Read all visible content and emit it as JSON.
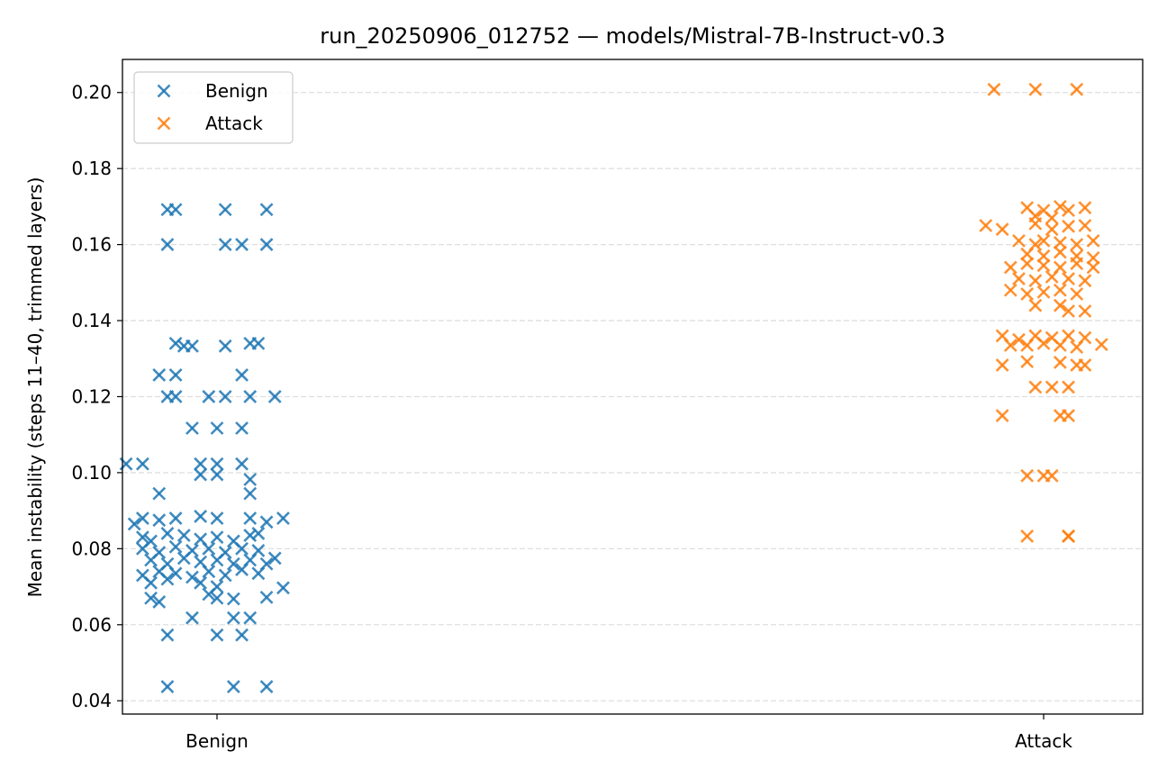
{
  "chart_data": {
    "type": "scatter",
    "title": "run_20250906_012752 — models/Mistral-7B-Instruct-v0.3",
    "xlabel": "",
    "ylabel": "Mean instability (steps 11–40, trimmed layers)",
    "categories": [
      "Benign",
      "Attack"
    ],
    "ylim": [
      0.0365,
      0.2087
    ],
    "yticks": [
      0.04,
      0.06,
      0.08,
      0.1,
      0.12,
      0.14,
      0.16,
      0.18,
      0.2
    ],
    "ytick_labels": [
      "0.04",
      "0.06",
      "0.08",
      "0.10",
      "0.12",
      "0.14",
      "0.16",
      "0.18",
      "0.20"
    ],
    "grid": "y-dashed",
    "legend_position": "top-left",
    "marker": "x",
    "series": [
      {
        "name": "Benign",
        "color": "#1f77b4",
        "category": "Benign",
        "points": [
          [
            -0.06,
            0.1692
          ],
          [
            -0.05,
            0.1692
          ],
          [
            0.01,
            0.1692
          ],
          [
            0.06,
            0.1692
          ],
          [
            -0.06,
            0.16
          ],
          [
            0.01,
            0.16
          ],
          [
            0.03,
            0.16
          ],
          [
            0.06,
            0.16
          ],
          [
            -0.05,
            0.134
          ],
          [
            -0.04,
            0.1333
          ],
          [
            -0.03,
            0.1333
          ],
          [
            0.01,
            0.1333
          ],
          [
            0.04,
            0.134
          ],
          [
            0.05,
            0.134
          ],
          [
            -0.07,
            0.1257
          ],
          [
            -0.05,
            0.1257
          ],
          [
            0.03,
            0.1257
          ],
          [
            -0.06,
            0.12
          ],
          [
            -0.05,
            0.12
          ],
          [
            -0.01,
            0.12
          ],
          [
            0.01,
            0.12
          ],
          [
            0.04,
            0.12
          ],
          [
            0.07,
            0.12
          ],
          [
            -0.03,
            0.1117
          ],
          [
            0.0,
            0.1117
          ],
          [
            0.03,
            0.1117
          ],
          [
            -0.11,
            0.1023
          ],
          [
            -0.09,
            0.1023
          ],
          [
            -0.02,
            0.1023
          ],
          [
            0.0,
            0.1023
          ],
          [
            0.03,
            0.1023
          ],
          [
            -0.02,
            0.0995
          ],
          [
            0.0,
            0.0995
          ],
          [
            0.04,
            0.0982
          ],
          [
            0.04,
            0.0945
          ],
          [
            -0.07,
            0.0945
          ],
          [
            -0.1,
            0.0865
          ],
          [
            -0.09,
            0.088
          ],
          [
            -0.07,
            0.0875
          ],
          [
            -0.05,
            0.088
          ],
          [
            -0.02,
            0.0885
          ],
          [
            0.0,
            0.088
          ],
          [
            0.04,
            0.088
          ],
          [
            0.06,
            0.087
          ],
          [
            0.08,
            0.088
          ],
          [
            -0.09,
            0.083
          ],
          [
            -0.08,
            0.082
          ],
          [
            -0.06,
            0.084
          ],
          [
            -0.04,
            0.0835
          ],
          [
            -0.02,
            0.0825
          ],
          [
            0.0,
            0.083
          ],
          [
            0.02,
            0.082
          ],
          [
            0.04,
            0.0835
          ],
          [
            0.05,
            0.084
          ],
          [
            -0.09,
            0.08
          ],
          [
            -0.07,
            0.079
          ],
          [
            -0.05,
            0.0805
          ],
          [
            -0.03,
            0.0795
          ],
          [
            -0.01,
            0.08
          ],
          [
            0.01,
            0.079
          ],
          [
            0.03,
            0.08
          ],
          [
            0.05,
            0.0795
          ],
          [
            0.07,
            0.0775
          ],
          [
            -0.08,
            0.077
          ],
          [
            -0.06,
            0.076
          ],
          [
            -0.04,
            0.0775
          ],
          [
            -0.02,
            0.0765
          ],
          [
            0.0,
            0.077
          ],
          [
            0.02,
            0.076
          ],
          [
            0.04,
            0.077
          ],
          [
            0.06,
            0.076
          ],
          [
            -0.09,
            0.073
          ],
          [
            -0.07,
            0.074
          ],
          [
            -0.05,
            0.0735
          ],
          [
            -0.03,
            0.0725
          ],
          [
            -0.01,
            0.074
          ],
          [
            0.01,
            0.073
          ],
          [
            0.03,
            0.0745
          ],
          [
            0.05,
            0.0735
          ],
          [
            -0.08,
            0.071
          ],
          [
            -0.06,
            0.072
          ],
          [
            -0.02,
            0.071
          ],
          [
            0.0,
            0.07
          ],
          [
            0.08,
            0.0697
          ],
          [
            -0.08,
            0.067
          ],
          [
            -0.07,
            0.066
          ],
          [
            -0.01,
            0.068
          ],
          [
            0.0,
            0.067
          ],
          [
            0.02,
            0.0668
          ],
          [
            0.06,
            0.0672
          ],
          [
            -0.03,
            0.0618
          ],
          [
            0.02,
            0.0618
          ],
          [
            0.04,
            0.0618
          ],
          [
            -0.06,
            0.0573
          ],
          [
            0.0,
            0.0573
          ],
          [
            0.03,
            0.0573
          ],
          [
            -0.06,
            0.0437
          ],
          [
            0.02,
            0.0437
          ],
          [
            0.06,
            0.0437
          ]
        ]
      },
      {
        "name": "Attack",
        "color": "#ff7f0e",
        "category": "Attack",
        "points": [
          [
            -0.06,
            0.2008
          ],
          [
            -0.01,
            0.2008
          ],
          [
            0.04,
            0.2008
          ],
          [
            -0.02,
            0.1697
          ],
          [
            0.0,
            0.169
          ],
          [
            0.02,
            0.17
          ],
          [
            -0.01,
            0.1675
          ],
          [
            0.01,
            0.167
          ],
          [
            0.03,
            0.169
          ],
          [
            0.05,
            0.1697
          ],
          [
            -0.07,
            0.165
          ],
          [
            -0.05,
            0.164
          ],
          [
            -0.01,
            0.1655
          ],
          [
            0.01,
            0.164
          ],
          [
            0.03,
            0.1648
          ],
          [
            0.05,
            0.165
          ],
          [
            -0.03,
            0.161
          ],
          [
            -0.01,
            0.16
          ],
          [
            0.0,
            0.161
          ],
          [
            0.02,
            0.1605
          ],
          [
            0.04,
            0.16
          ],
          [
            0.06,
            0.161
          ],
          [
            -0.02,
            0.1575
          ],
          [
            0.0,
            0.157
          ],
          [
            0.02,
            0.158
          ],
          [
            0.04,
            0.157
          ],
          [
            0.06,
            0.1565
          ],
          [
            -0.04,
            0.154
          ],
          [
            -0.02,
            0.155
          ],
          [
            0.0,
            0.1545
          ],
          [
            0.02,
            0.154
          ],
          [
            0.04,
            0.155
          ],
          [
            0.06,
            0.154
          ],
          [
            -0.03,
            0.151
          ],
          [
            -0.01,
            0.1505
          ],
          [
            0.01,
            0.1515
          ],
          [
            0.03,
            0.151
          ],
          [
            0.05,
            0.1505
          ],
          [
            -0.04,
            0.148
          ],
          [
            -0.02,
            0.147
          ],
          [
            0.0,
            0.1475
          ],
          [
            0.02,
            0.148
          ],
          [
            0.04,
            0.147
          ],
          [
            -0.01,
            0.144
          ],
          [
            0.02,
            0.144
          ],
          [
            0.03,
            0.1425
          ],
          [
            0.05,
            0.1425
          ],
          [
            -0.05,
            0.136
          ],
          [
            -0.03,
            0.135
          ],
          [
            -0.01,
            0.136
          ],
          [
            0.01,
            0.1355
          ],
          [
            0.03,
            0.136
          ],
          [
            0.05,
            0.1355
          ],
          [
            -0.04,
            0.1335
          ],
          [
            -0.02,
            0.1335
          ],
          [
            0.0,
            0.134
          ],
          [
            0.02,
            0.1335
          ],
          [
            0.04,
            0.133
          ],
          [
            0.07,
            0.1337
          ],
          [
            -0.02,
            0.1292
          ],
          [
            0.02,
            0.129
          ],
          [
            0.04,
            0.1283
          ],
          [
            0.05,
            0.1283
          ],
          [
            -0.05,
            0.1283
          ],
          [
            -0.01,
            0.1225
          ],
          [
            0.01,
            0.1225
          ],
          [
            0.03,
            0.1225
          ],
          [
            -0.05,
            0.115
          ],
          [
            0.02,
            0.115
          ],
          [
            0.03,
            0.115
          ],
          [
            -0.02,
            0.0992
          ],
          [
            0.0,
            0.0992
          ],
          [
            0.01,
            0.0992
          ],
          [
            -0.02,
            0.0833
          ],
          [
            0.03,
            0.0833
          ],
          [
            0.03,
            0.0833
          ]
        ]
      }
    ]
  }
}
